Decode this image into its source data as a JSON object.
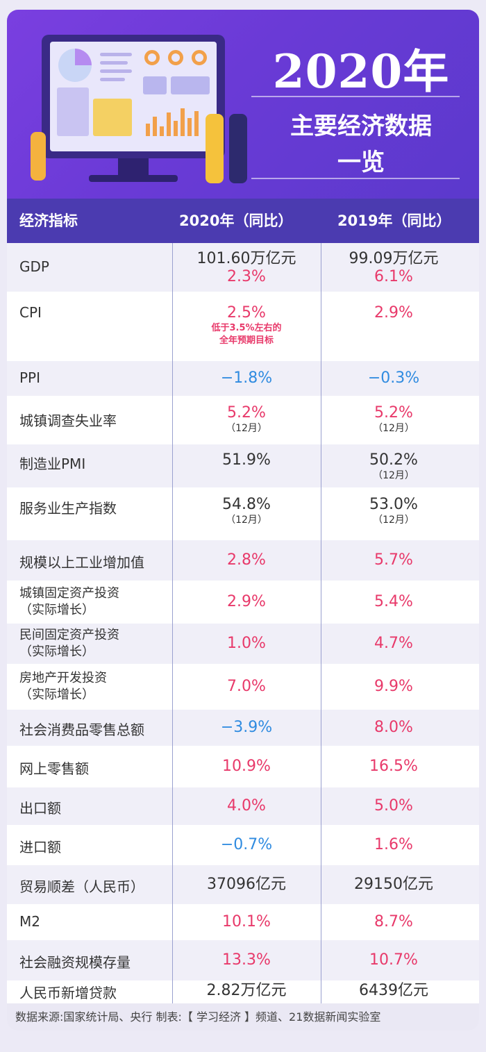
{
  "hero": {
    "year": "2020年",
    "subtitle_line1": "主要经济数据",
    "subtitle_line2": "一览"
  },
  "header": {
    "col0": "经济指标",
    "col1": "2020年（同比）",
    "col2": "2019年（同比）"
  },
  "colors": {
    "pink": "#e8396a",
    "blue": "#2f8be0",
    "header_bg": "#4b3bb0",
    "hero_bg": "#6a3ad6"
  },
  "rows": [
    {
      "label": "GDP",
      "v2020": "101.60万亿元",
      "v2020b": "2.3%",
      "v2019": "99.09万亿元",
      "v2019b": "6.1%"
    },
    {
      "label": "CPI",
      "v2020": "2.5%",
      "v2020_note1": "低于3.5%左右的",
      "v2020_note2": "全年预期目标",
      "v2019": "2.9%"
    },
    {
      "label": "PPI",
      "v2020": "−1.8%",
      "v2019": "−0.3%"
    },
    {
      "label": "城镇调查失业率",
      "v2020": "5.2%",
      "v2020_note": "（12月）",
      "v2019": "5.2%",
      "v2019_note": "（12月）"
    },
    {
      "label": "制造业PMI",
      "v2020": "51.9%",
      "v2019": "50.2%",
      "v2019_note": "（12月）"
    },
    {
      "label": "服务业生产指数",
      "v2020": "54.8%",
      "v2020_note": "（12月）",
      "v2019": "53.0%",
      "v2019_note": "（12月）"
    },
    {
      "label": "规模以上工业增加值",
      "v2020": "2.8%",
      "v2019": "5.7%"
    },
    {
      "label": "城镇固定资产投资",
      "label2": "（实际增长）",
      "v2020": "2.9%",
      "v2019": "5.4%"
    },
    {
      "label": "民间固定资产投资",
      "label2": "（实际增长）",
      "v2020": "1.0%",
      "v2019": "4.7%"
    },
    {
      "label": "房地产开发投资",
      "label2": "（实际增长）",
      "v2020": "7.0%",
      "v2019": "9.9%"
    },
    {
      "label": "社会消费品零售总额",
      "v2020": "−3.9%",
      "v2019": "8.0%"
    },
    {
      "label": "网上零售额",
      "v2020": "10.9%",
      "v2019": "16.5%"
    },
    {
      "label": "出口额",
      "v2020": "4.0%",
      "v2019": "5.0%"
    },
    {
      "label": "进口额",
      "v2020": "−0.7%",
      "v2019": "1.6%"
    },
    {
      "label": "贸易顺差（人民币）",
      "v2020": "37096亿元",
      "v2019": "29150亿元"
    },
    {
      "label": "M2",
      "v2020": "10.1%",
      "v2019": "8.7%"
    },
    {
      "label": "社会融资规模存量",
      "v2020": "13.3%",
      "v2019": "10.7%"
    },
    {
      "label": "人民币新增贷款",
      "v2020": "2.82万亿元",
      "v2019": "6439亿元"
    }
  ],
  "footer": {
    "text": "数据来源:国家统计局、央行  制表:【 学习经济 】频道、21数据新闻实验室"
  }
}
